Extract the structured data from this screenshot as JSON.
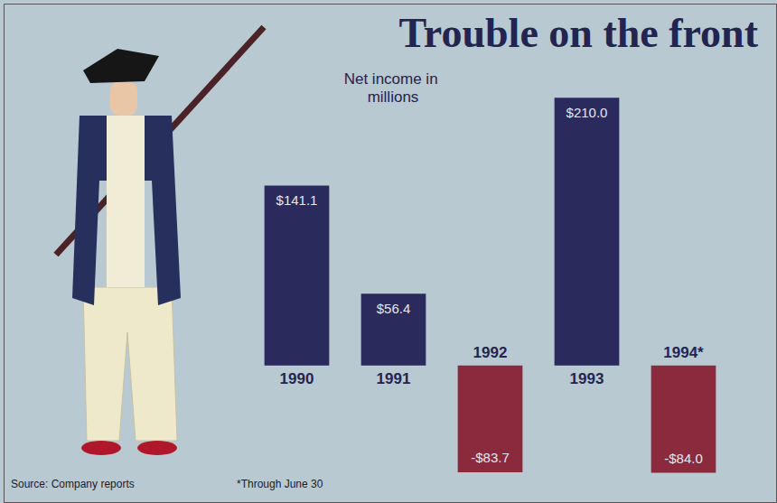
{
  "chart_data": {
    "type": "bar",
    "title": "Trouble on the front",
    "subtitle": "Net income in millions",
    "categories": [
      "1990",
      "1991",
      "1992",
      "1993",
      "1994*"
    ],
    "values": [
      141.1,
      56.4,
      -83.7,
      210.0,
      -84.0
    ],
    "value_labels": [
      "$141.1",
      "$56.4",
      "-$83.7",
      "$210.0",
      "-$84.0"
    ],
    "colors": [
      "#2b2a5c",
      "#2b2a5c",
      "#8a2a3c",
      "#2b2a5c",
      "#8a2a3c"
    ],
    "ylim": [
      -90,
      220
    ],
    "grid": false,
    "data_labels": true,
    "tick_labels": "x",
    "annotations": [
      "Source: Company reports",
      "*Through June 30"
    ]
  }
}
